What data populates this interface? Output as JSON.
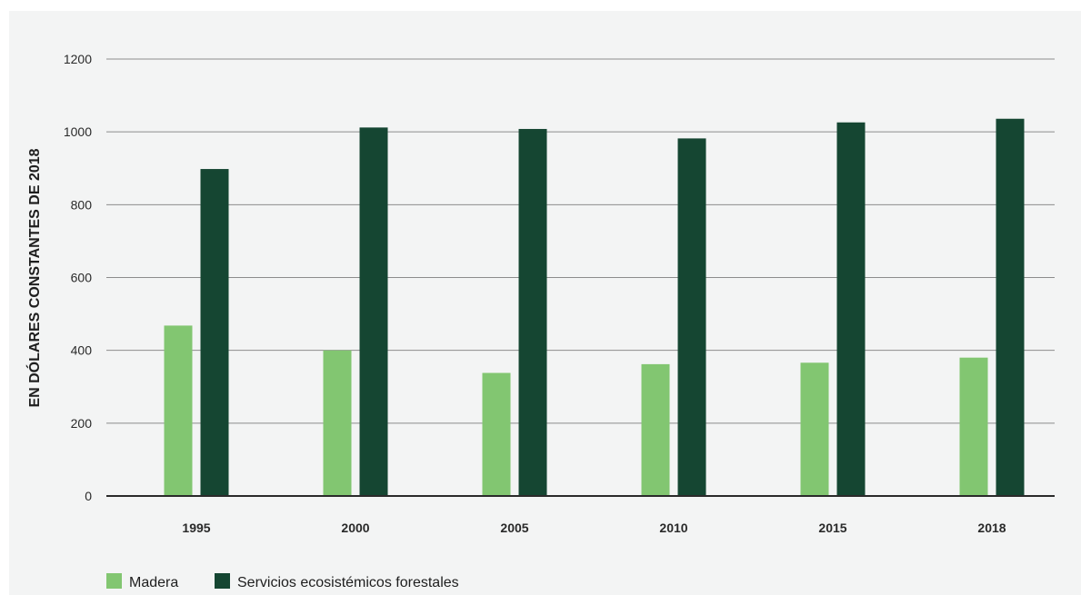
{
  "chart_data": {
    "type": "bar",
    "categories": [
      "1995",
      "2000",
      "2005",
      "2010",
      "2015",
      "2018"
    ],
    "series": [
      {
        "name": "Madera",
        "values": [
          468,
          400,
          338,
          362,
          366,
          380
        ],
        "color": "#82c671"
      },
      {
        "name": "Servicios ecosistémicos forestales",
        "values": [
          898,
          1012,
          1008,
          982,
          1026,
          1036
        ],
        "color": "#154632"
      }
    ],
    "title": "",
    "xlabel": "",
    "ylabel": "EN DÓLARES CONSTANTES DE 2018",
    "ylim": [
      0,
      1200
    ],
    "yticks": [
      0,
      200,
      400,
      600,
      800,
      1000,
      1200
    ],
    "grid": true,
    "legend_position": "bottom-left",
    "colors": {
      "background": "#f3f4f4",
      "grid": "#8c8c8c",
      "axis": "#2a2a2a"
    }
  }
}
